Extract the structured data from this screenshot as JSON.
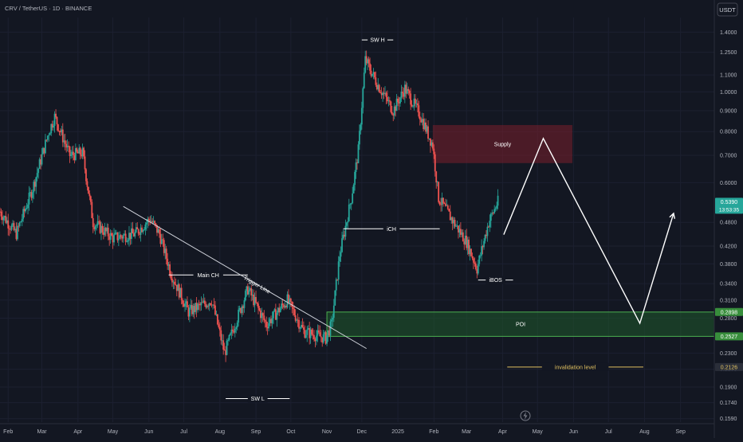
{
  "header": {
    "symbol_line": "CRV / TetherUS · 1D · BINANCE"
  },
  "currency_button": {
    "label": "USDT"
  },
  "colors": {
    "background": "#131722",
    "up": "#26a69a",
    "down": "#ef5350",
    "supply_zone": "#7a1f2b",
    "poi_zone": "#1f5a2c",
    "poi_border": "#4caf50",
    "invalidation": "#e0c060",
    "projection": "#ffffff",
    "axis_text": "#b2b5be",
    "price_tag": "#26a69a"
  },
  "chart_data": {
    "type": "candlestick",
    "y_scale": "log",
    "ylim": [
      0.156,
      1.52
    ],
    "y_ticks": [
      "1.4000",
      "1.2500",
      "1.1000",
      "1.0000",
      "0.9000",
      "0.8000",
      "0.7000",
      "0.6000",
      "0.4800",
      "0.4200",
      "0.3800",
      "0.3400",
      "0.3100",
      "0.2800",
      "0.2300",
      "0.2100",
      "0.1900",
      "0.1740",
      "0.1590"
    ],
    "x_axis_labels": [
      "Feb",
      "Mar",
      "Apr",
      "May",
      "Jun",
      "Jul",
      "Aug",
      "Sep",
      "Oct",
      "Nov",
      "Dec",
      "2025",
      "Feb",
      "Mar",
      "Apr",
      "May",
      "Jun",
      "Jul",
      "Aug",
      "Sep"
    ],
    "x_axis_range": [
      "2024-01-25",
      "2025-09-30"
    ],
    "price_path_keypoints": [
      [
        "2024-01-25",
        0.51
      ],
      [
        "2024-02-08",
        0.45
      ],
      [
        "2024-02-22",
        0.58
      ],
      [
        "2024-03-07",
        0.8
      ],
      [
        "2024-03-12",
        0.87
      ],
      [
        "2024-03-25",
        0.7
      ],
      [
        "2024-04-05",
        0.71
      ],
      [
        "2024-04-14",
        0.48
      ],
      [
        "2024-05-01",
        0.44
      ],
      [
        "2024-05-20",
        0.45
      ],
      [
        "2024-06-02",
        0.49
      ],
      [
        "2024-06-10",
        0.45
      ],
      [
        "2024-06-20",
        0.36
      ],
      [
        "2024-07-05",
        0.29
      ],
      [
        "2024-07-25",
        0.31
      ],
      [
        "2024-08-05",
        0.23
      ],
      [
        "2024-08-25",
        0.33
      ],
      [
        "2024-09-10",
        0.27
      ],
      [
        "2024-09-28",
        0.31
      ],
      [
        "2024-10-12",
        0.26
      ],
      [
        "2024-10-31",
        0.25
      ],
      [
        "2024-11-05",
        0.27
      ],
      [
        "2024-11-12",
        0.4
      ],
      [
        "2024-11-22",
        0.55
      ],
      [
        "2024-11-28",
        0.72
      ],
      [
        "2024-12-04",
        1.2
      ],
      [
        "2024-12-14",
        1.05
      ],
      [
        "2024-12-28",
        0.9
      ],
      [
        "2025-01-07",
        1.02
      ],
      [
        "2025-01-20",
        0.88
      ],
      [
        "2025-01-31",
        0.74
      ],
      [
        "2025-02-05",
        0.55
      ],
      [
        "2025-02-18",
        0.48
      ],
      [
        "2025-03-01",
        0.43
      ],
      [
        "2025-03-10",
        0.37
      ],
      [
        "2025-03-20",
        0.48
      ],
      [
        "2025-03-28",
        0.539
      ]
    ],
    "swing_highs": [
      {
        "date": "2024-03-12",
        "price": 0.88
      },
      {
        "date": "2024-12-04",
        "price": 1.33
      }
    ],
    "swing_lows": [
      {
        "date": "2024-08-05",
        "price": 0.178
      },
      {
        "date": "2025-03-11",
        "price": 0.35
      }
    ],
    "zones": {
      "supply": {
        "label": "Supply",
        "top": 0.83,
        "bottom": 0.67,
        "from": "2025-01-31",
        "to": "2025-05-31"
      },
      "poi": {
        "label": "POI",
        "top": 0.2898,
        "bottom": 0.2527,
        "from": "2024-11-01",
        "to": "2025-09-30"
      }
    },
    "levels": {
      "invalidation": {
        "label": "invalidation level",
        "price": 0.2126,
        "from": "2025-04-05",
        "to": "2025-07-31"
      },
      "sw_h": {
        "label": "SW H",
        "price": 1.34,
        "from": "2024-12-01",
        "to": "2024-12-28"
      },
      "sw_l": {
        "label": "SW L",
        "price": 0.178,
        "from": "2024-08-06",
        "to": "2024-09-30"
      },
      "main_ch": {
        "label": "Main CH",
        "price": 0.357,
        "from": "2024-06-18",
        "to": "2024-08-25"
      },
      "ich": {
        "label": "iCH",
        "price": 0.463,
        "from": "2024-11-15",
        "to": "2025-02-06"
      },
      "ibos": {
        "label": "iBOS",
        "price": 0.347,
        "from": "2025-03-11",
        "to": "2025-04-10"
      }
    },
    "trigger_line": {
      "label": "Trigger Line",
      "from": [
        "2024-05-10",
        0.525
      ],
      "to": [
        "2024-12-05",
        0.236
      ]
    },
    "projection_path": [
      [
        "2025-04-02",
        0.448
      ],
      [
        "2025-05-06",
        0.77
      ],
      [
        "2025-07-28",
        0.272
      ],
      [
        "2025-08-26",
        0.505
      ]
    ],
    "price_tags": [
      {
        "value": "0.5390",
        "sub": "13:53:35",
        "price": 0.539,
        "color": "#26a69a"
      },
      {
        "value": "0.2898",
        "price": 0.2898,
        "color": "#388e3c"
      },
      {
        "value": "0.2527",
        "price": 0.2527,
        "color": "#388e3c"
      },
      {
        "value": "0.2126",
        "price": 0.2126,
        "color": "#2a2e39"
      }
    ]
  }
}
